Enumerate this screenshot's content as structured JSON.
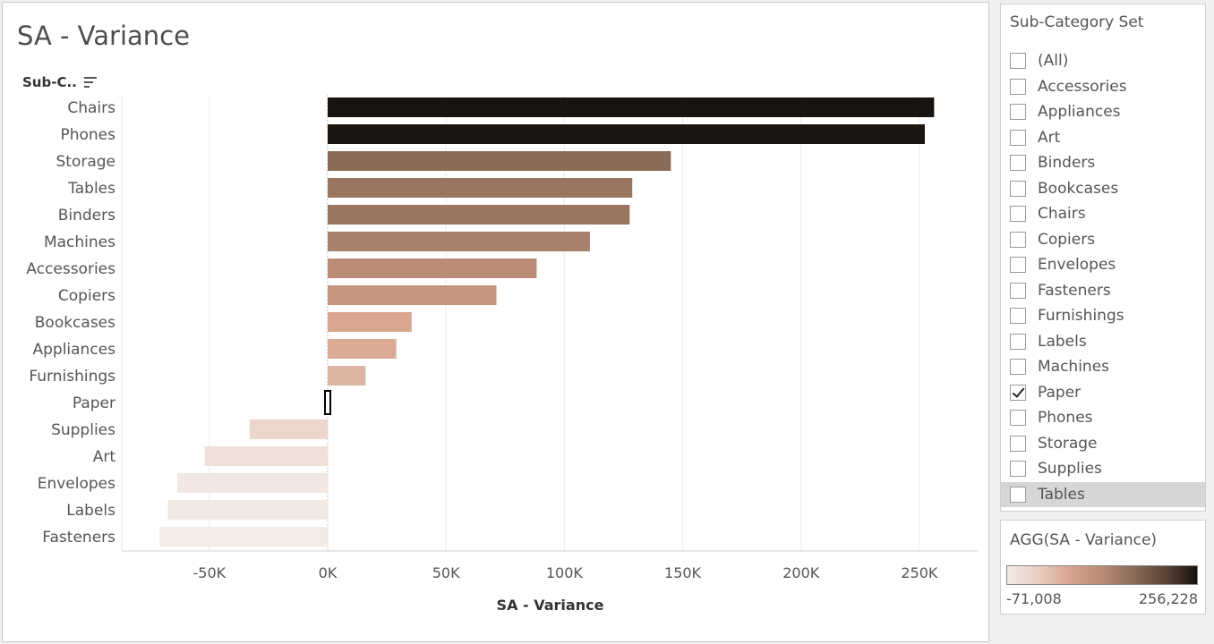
{
  "sheet": {
    "title": "SA - Variance",
    "row_header": "Sub-C.."
  },
  "chart_data": {
    "type": "bar",
    "orientation": "horizontal",
    "categories": [
      "Chairs",
      "Phones",
      "Storage",
      "Tables",
      "Binders",
      "Machines",
      "Accessories",
      "Copiers",
      "Bookcases",
      "Appliances",
      "Furnishings",
      "Paper",
      "Supplies",
      "Art",
      "Envelopes",
      "Labels",
      "Fasteners"
    ],
    "values": [
      256228,
      252300,
      145000,
      128700,
      127600,
      110800,
      88300,
      71300,
      35500,
      29000,
      16000,
      0,
      -33000,
      -52000,
      -63500,
      -67500,
      -71008
    ],
    "xlabel": "SA - Variance",
    "ylabel": "Sub-C..",
    "xlim": [
      -87000,
      275000
    ],
    "x_ticks": [
      -50000,
      0,
      50000,
      100000,
      150000,
      200000,
      250000
    ],
    "x_tick_labels": [
      "-50K",
      "0K",
      "50K",
      "100K",
      "150K",
      "200K",
      "250K"
    ],
    "grid": true,
    "color_min": -71008,
    "color_max": 256228,
    "colors": [
      "#f4ebe6",
      "#e8cdbf",
      "#d8a48e",
      "#b98b72",
      "#8a6b57",
      "#5c4336",
      "#171310"
    ],
    "highlighted": "Paper"
  },
  "filter": {
    "title": "Sub-Category Set",
    "items": [
      {
        "label": "(All)",
        "checked": false,
        "highlighted": false
      },
      {
        "label": "Accessories",
        "checked": false,
        "highlighted": false
      },
      {
        "label": "Appliances",
        "checked": false,
        "highlighted": false
      },
      {
        "label": "Art",
        "checked": false,
        "highlighted": false
      },
      {
        "label": "Binders",
        "checked": false,
        "highlighted": false
      },
      {
        "label": "Bookcases",
        "checked": false,
        "highlighted": false
      },
      {
        "label": "Chairs",
        "checked": false,
        "highlighted": false
      },
      {
        "label": "Copiers",
        "checked": false,
        "highlighted": false
      },
      {
        "label": "Envelopes",
        "checked": false,
        "highlighted": false
      },
      {
        "label": "Fasteners",
        "checked": false,
        "highlighted": false
      },
      {
        "label": "Furnishings",
        "checked": false,
        "highlighted": false
      },
      {
        "label": "Labels",
        "checked": false,
        "highlighted": false
      },
      {
        "label": "Machines",
        "checked": false,
        "highlighted": false
      },
      {
        "label": "Paper",
        "checked": true,
        "highlighted": false
      },
      {
        "label": "Phones",
        "checked": false,
        "highlighted": false
      },
      {
        "label": "Storage",
        "checked": false,
        "highlighted": false
      },
      {
        "label": "Supplies",
        "checked": false,
        "highlighted": false
      },
      {
        "label": "Tables",
        "checked": false,
        "highlighted": true
      }
    ]
  },
  "legend": {
    "title": "AGG(SA - Variance)",
    "min_label": "-71,008",
    "max_label": "256,228"
  }
}
